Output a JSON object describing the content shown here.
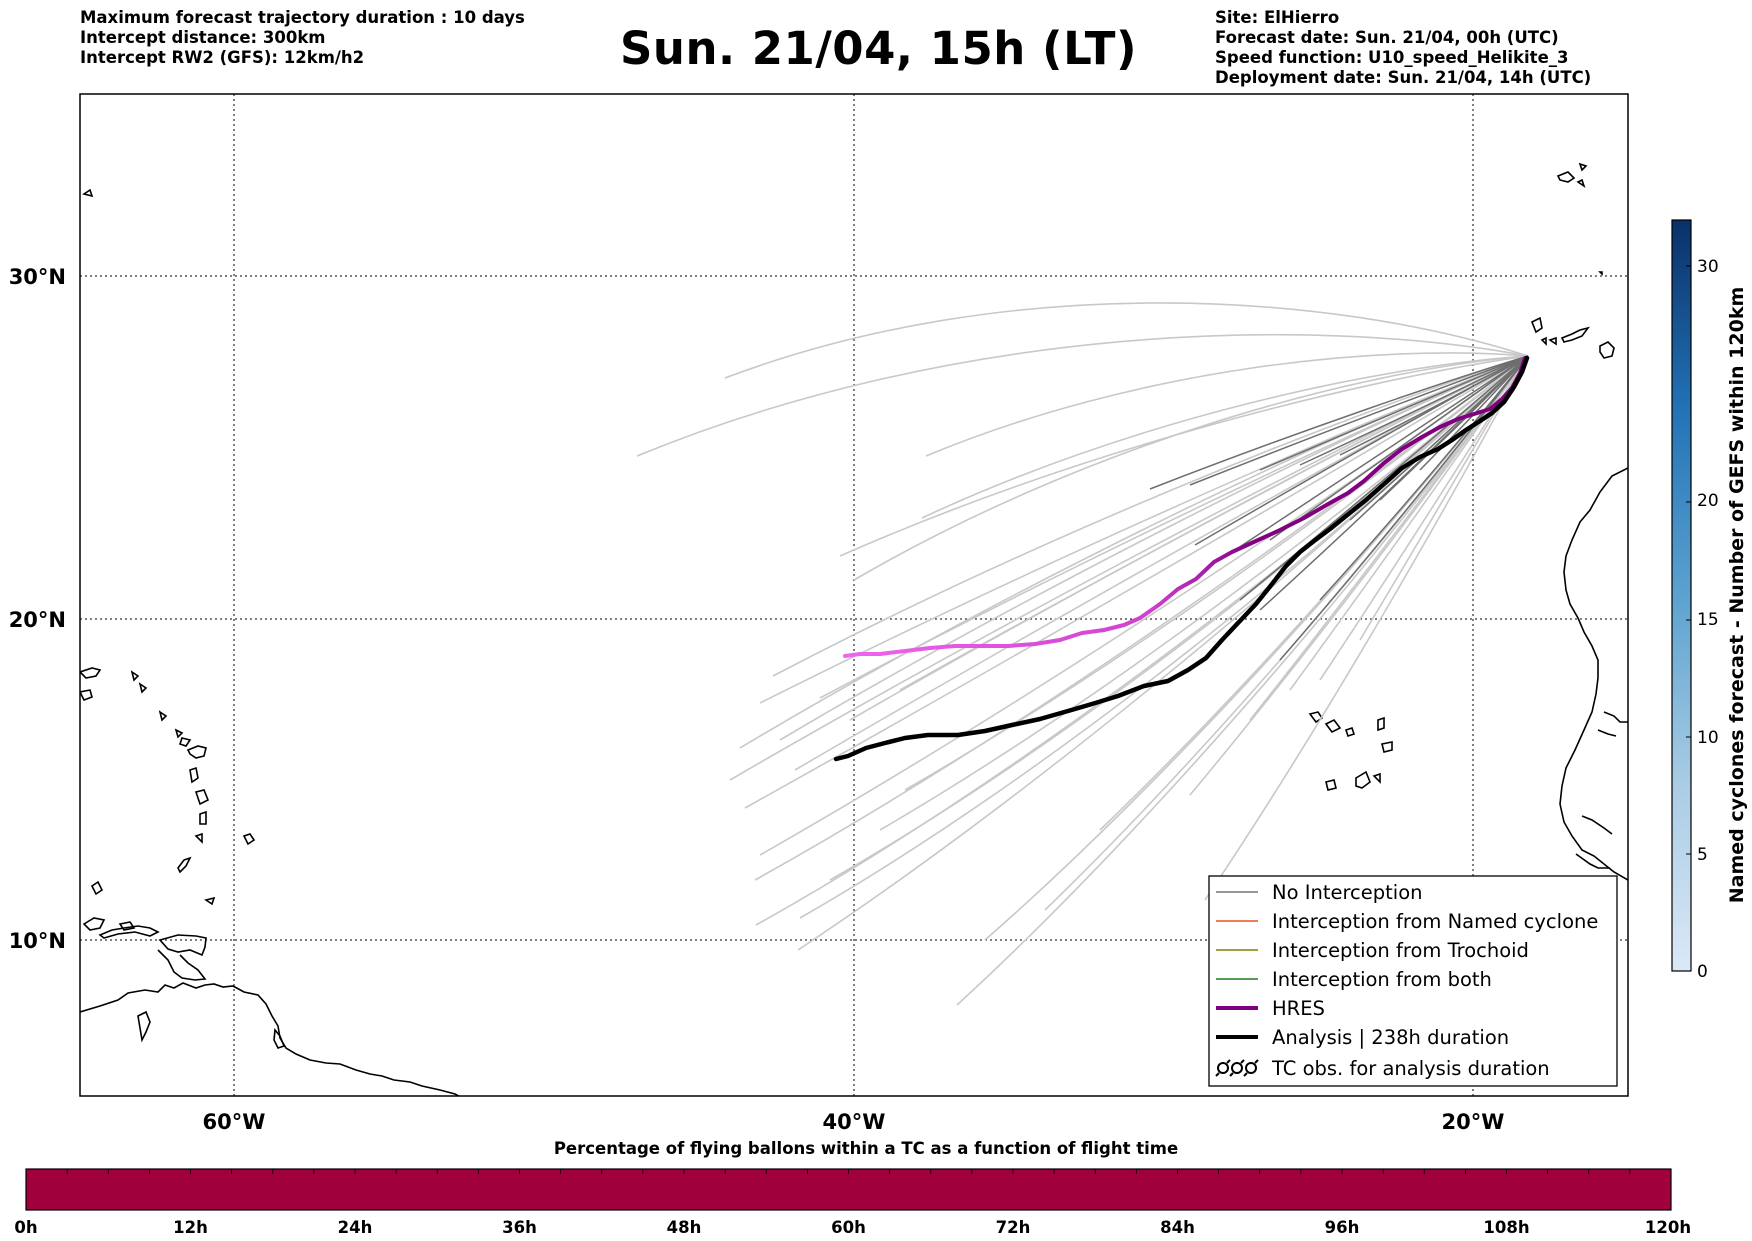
{
  "header": {
    "left_lines": [
      "Maximum forecast trajectory duration : 10 days",
      "Intercept distance: 300km",
      "Intercept RW2 (GFS):  12km/h2"
    ],
    "title": "Sun. 21/04, 15h (LT)",
    "right_lines": [
      "Site: ElHierro",
      "Forecast date: Sun. 21/04, 00h (UTC)",
      "Speed function: U10_speed_Helikite_3",
      "Deployment date: Sun. 21/04, 14h (UTC)"
    ]
  },
  "map": {
    "lat_labels": [
      "30°N",
      "20°N",
      "10°N"
    ],
    "lon_labels": [
      "60°W",
      "40°W",
      "20°W"
    ]
  },
  "legend": {
    "items": [
      {
        "label": "No Interception",
        "color": "#777777",
        "style": "thin"
      },
      {
        "label": "Interception from Named cyclone",
        "color": "#e8541e",
        "style": "thin"
      },
      {
        "label": "Interception from Trochoid",
        "color": "#808000",
        "style": "thin"
      },
      {
        "label": "Interception from both",
        "color": "#1f7a1f",
        "style": "thin"
      },
      {
        "label": "HRES",
        "color": "#800080",
        "style": "thick"
      },
      {
        "label": "Analysis | 238h duration",
        "color": "#000000",
        "style": "thick"
      },
      {
        "label": "TC obs. for analysis duration",
        "color": "#000000",
        "style": "symbol"
      }
    ]
  },
  "colorbar": {
    "title": "Named cyclones forecast - Number of GEFS within 120km",
    "ticks": [
      "0",
      "5",
      "10",
      "15",
      "20",
      "30"
    ]
  },
  "bottom_bar": {
    "title": "Percentage of flying ballons within a TC as a function of flight time",
    "color": "#a0003c",
    "ticks": [
      "0h",
      "12h",
      "24h",
      "36h",
      "48h",
      "60h",
      "72h",
      "84h",
      "96h",
      "108h",
      "120h"
    ]
  },
  "colors": {
    "hres_near": "#800080",
    "hres_far": "#ee66ee",
    "analysis": "#000000",
    "ensemble_close": "#6e6e6e",
    "ensemble_far": "#c8c8c8",
    "grid": "#000000"
  }
}
